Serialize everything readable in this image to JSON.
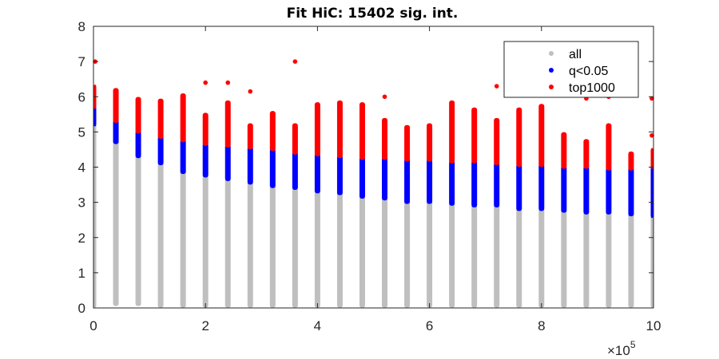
{
  "chart_data": {
    "type": "scatter",
    "title": "Fit HiC: 15402 sig. int.",
    "xlabel": "",
    "ylabel": "",
    "xlim": [
      0,
      1000000
    ],
    "ylim": [
      0,
      8
    ],
    "x_ticks": [
      "0",
      "2",
      "4",
      "6",
      "8",
      "10"
    ],
    "x_tick_values": [
      0,
      200000,
      400000,
      600000,
      800000,
      1000000
    ],
    "x_exponent_label": "×10",
    "x_exponent_power": "5",
    "y_ticks": [
      "0",
      "1",
      "2",
      "3",
      "4",
      "5",
      "6",
      "7",
      "8"
    ],
    "y_tick_values": [
      0,
      1,
      2,
      3,
      4,
      5,
      6,
      7,
      8
    ],
    "legend_position": "top-right",
    "grid": false,
    "colors": {
      "all": "#bfbfbf",
      "q": "#0000ff",
      "top": "#ff0000"
    },
    "series": [
      {
        "name": "all",
        "columns": [
          {
            "x": 0,
            "y_min": 0.05,
            "y_max": 5.2
          },
          {
            "x": 40000,
            "y_min": 0.1,
            "y_max": 4.7
          },
          {
            "x": 80000,
            "y_min": 0.1,
            "y_max": 4.3
          },
          {
            "x": 120000,
            "y_min": 0.05,
            "y_max": 4.1
          },
          {
            "x": 160000,
            "y_min": 0.05,
            "y_max": 3.85
          },
          {
            "x": 200000,
            "y_min": 0.05,
            "y_max": 3.75
          },
          {
            "x": 240000,
            "y_min": 0.05,
            "y_max": 3.65
          },
          {
            "x": 280000,
            "y_min": 0.05,
            "y_max": 3.55
          },
          {
            "x": 320000,
            "y_min": 0.05,
            "y_max": 3.45
          },
          {
            "x": 360000,
            "y_min": 0.05,
            "y_max": 3.4
          },
          {
            "x": 400000,
            "y_min": 0.05,
            "y_max": 3.3
          },
          {
            "x": 440000,
            "y_min": 0.05,
            "y_max": 3.25
          },
          {
            "x": 480000,
            "y_min": 0.05,
            "y_max": 3.15
          },
          {
            "x": 520000,
            "y_min": 0.05,
            "y_max": 3.1
          },
          {
            "x": 560000,
            "y_min": 0.05,
            "y_max": 3.0
          },
          {
            "x": 600000,
            "y_min": 0.05,
            "y_max": 3.0
          },
          {
            "x": 640000,
            "y_min": 0.05,
            "y_max": 2.95
          },
          {
            "x": 680000,
            "y_min": 0.05,
            "y_max": 2.9
          },
          {
            "x": 720000,
            "y_min": 0.05,
            "y_max": 2.9
          },
          {
            "x": 760000,
            "y_min": 0.05,
            "y_max": 2.8
          },
          {
            "x": 800000,
            "y_min": 0.05,
            "y_max": 2.8
          },
          {
            "x": 840000,
            "y_min": 0.05,
            "y_max": 2.75
          },
          {
            "x": 880000,
            "y_min": 0.05,
            "y_max": 2.7
          },
          {
            "x": 920000,
            "y_min": 0.05,
            "y_max": 2.7
          },
          {
            "x": 960000,
            "y_min": 0.05,
            "y_max": 2.65
          },
          {
            "x": 1000000,
            "y_min": 0.05,
            "y_max": 2.6
          }
        ]
      },
      {
        "name": "q<0.05",
        "columns": [
          {
            "x": 0,
            "y_min": 5.2,
            "y_max": 5.7
          },
          {
            "x": 40000,
            "y_min": 4.7,
            "y_max": 5.3
          },
          {
            "x": 80000,
            "y_min": 4.3,
            "y_max": 5.0
          },
          {
            "x": 120000,
            "y_min": 4.1,
            "y_max": 4.85
          },
          {
            "x": 160000,
            "y_min": 3.85,
            "y_max": 4.75
          },
          {
            "x": 200000,
            "y_min": 3.75,
            "y_max": 4.65
          },
          {
            "x": 240000,
            "y_min": 3.65,
            "y_max": 4.6
          },
          {
            "x": 280000,
            "y_min": 3.55,
            "y_max": 4.55
          },
          {
            "x": 320000,
            "y_min": 3.45,
            "y_max": 4.5
          },
          {
            "x": 360000,
            "y_min": 3.4,
            "y_max": 4.4
          },
          {
            "x": 400000,
            "y_min": 3.3,
            "y_max": 4.35
          },
          {
            "x": 440000,
            "y_min": 3.25,
            "y_max": 4.3
          },
          {
            "x": 480000,
            "y_min": 3.15,
            "y_max": 4.25
          },
          {
            "x": 520000,
            "y_min": 3.1,
            "y_max": 4.25
          },
          {
            "x": 560000,
            "y_min": 3.0,
            "y_max": 4.2
          },
          {
            "x": 600000,
            "y_min": 3.0,
            "y_max": 4.2
          },
          {
            "x": 640000,
            "y_min": 2.95,
            "y_max": 4.15
          },
          {
            "x": 680000,
            "y_min": 2.9,
            "y_max": 4.15
          },
          {
            "x": 720000,
            "y_min": 2.9,
            "y_max": 4.1
          },
          {
            "x": 760000,
            "y_min": 2.8,
            "y_max": 4.05
          },
          {
            "x": 800000,
            "y_min": 2.8,
            "y_max": 4.05
          },
          {
            "x": 840000,
            "y_min": 2.75,
            "y_max": 4.0
          },
          {
            "x": 880000,
            "y_min": 2.7,
            "y_max": 4.0
          },
          {
            "x": 920000,
            "y_min": 2.7,
            "y_max": 3.95
          },
          {
            "x": 960000,
            "y_min": 2.65,
            "y_max": 3.95
          },
          {
            "x": 1000000,
            "y_min": 2.6,
            "y_max": 4.0
          }
        ]
      },
      {
        "name": "top1000",
        "columns": [
          {
            "x": 0,
            "y_min": 5.7,
            "y_max": 6.3
          },
          {
            "x": 40000,
            "y_min": 5.3,
            "y_max": 6.2
          },
          {
            "x": 80000,
            "y_min": 5.0,
            "y_max": 5.95
          },
          {
            "x": 120000,
            "y_min": 4.85,
            "y_max": 5.9
          },
          {
            "x": 160000,
            "y_min": 4.75,
            "y_max": 6.05
          },
          {
            "x": 200000,
            "y_min": 4.65,
            "y_max": 5.5
          },
          {
            "x": 240000,
            "y_min": 4.6,
            "y_max": 5.85
          },
          {
            "x": 280000,
            "y_min": 4.55,
            "y_max": 5.2
          },
          {
            "x": 320000,
            "y_min": 4.5,
            "y_max": 5.55
          },
          {
            "x": 360000,
            "y_min": 4.4,
            "y_max": 5.2
          },
          {
            "x": 400000,
            "y_min": 4.35,
            "y_max": 5.8
          },
          {
            "x": 440000,
            "y_min": 4.3,
            "y_max": 5.85
          },
          {
            "x": 480000,
            "y_min": 4.25,
            "y_max": 5.8
          },
          {
            "x": 520000,
            "y_min": 4.25,
            "y_max": 5.35
          },
          {
            "x": 560000,
            "y_min": 4.2,
            "y_max": 5.15
          },
          {
            "x": 600000,
            "y_min": 4.2,
            "y_max": 5.2
          },
          {
            "x": 640000,
            "y_min": 4.15,
            "y_max": 5.85
          },
          {
            "x": 680000,
            "y_min": 4.15,
            "y_max": 5.65
          },
          {
            "x": 720000,
            "y_min": 4.1,
            "y_max": 5.35
          },
          {
            "x": 760000,
            "y_min": 4.05,
            "y_max": 5.65
          },
          {
            "x": 800000,
            "y_min": 4.05,
            "y_max": 5.75
          },
          {
            "x": 840000,
            "y_min": 4.0,
            "y_max": 4.95
          },
          {
            "x": 880000,
            "y_min": 4.0,
            "y_max": 4.75
          },
          {
            "x": 920000,
            "y_min": 3.95,
            "y_max": 5.2
          },
          {
            "x": 960000,
            "y_min": 3.95,
            "y_max": 4.4
          },
          {
            "x": 1000000,
            "y_min": 4.0,
            "y_max": 4.5
          }
        ],
        "outliers": [
          {
            "x": 0,
            "y": 7.0
          },
          {
            "x": 200000,
            "y": 6.4
          },
          {
            "x": 240000,
            "y": 6.4
          },
          {
            "x": 280000,
            "y": 6.15
          },
          {
            "x": 360000,
            "y": 7.0
          },
          {
            "x": 520000,
            "y": 6.0
          },
          {
            "x": 720000,
            "y": 6.3
          },
          {
            "x": 880000,
            "y": 5.95
          },
          {
            "x": 920000,
            "y": 6.0
          },
          {
            "x": 1000000,
            "y": 5.95
          },
          {
            "x": 1000000,
            "y": 4.9
          }
        ]
      }
    ]
  }
}
